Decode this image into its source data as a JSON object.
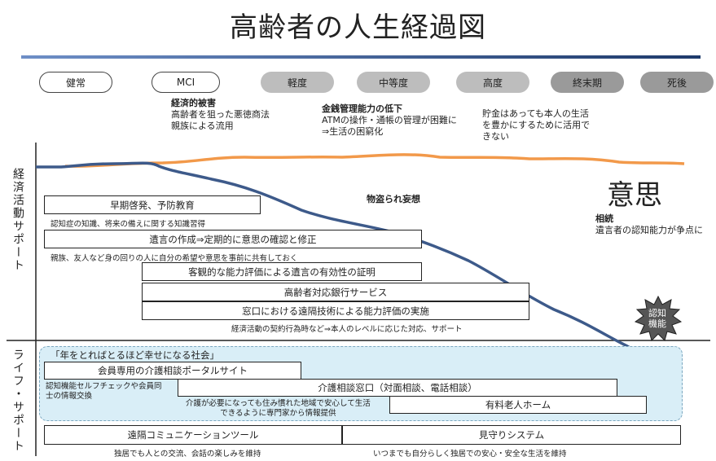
{
  "title": "高齢者の人生経過図",
  "stages": [
    {
      "label": "健常",
      "style": "white"
    },
    {
      "label": "MCI",
      "style": "white"
    },
    {
      "label": "軽度",
      "style": "grey1"
    },
    {
      "label": "中等度",
      "style": "grey1"
    },
    {
      "label": "高度",
      "style": "grey1"
    },
    {
      "label": "終末期",
      "style": "grey2"
    },
    {
      "label": "死後",
      "style": "grey2"
    }
  ],
  "notes": {
    "n1_title": "経済的被害",
    "n1_l1": "高齢者を狙った悪徳商法",
    "n1_l2": "親族による流用",
    "n2_title": "金銭管理能力の低下",
    "n2_l1": "ATMの操作・通帳の管理が困難に",
    "n2_l2": "⇒生活の困窮化",
    "n3_l1": "貯金はあっても本人の生活",
    "n3_l2": "を豊かにするために活用で",
    "n3_l3": "きない",
    "monotori": "物盗られ妄想",
    "ishi": "意思",
    "souzoku_title": "相続",
    "souzoku_l1": "遺言者の認知能力が争点に",
    "ninchi_l1": "認知",
    "ninchi_l2": "機能"
  },
  "axis": {
    "economic": "経済活動サポート",
    "life": "ライフ・サポート"
  },
  "economic_boxes": {
    "b1": "早期啓発、予防教育",
    "b1_sub": "認知症の知識、将来の備えに関する知識習得",
    "b2": "遺言の作成⇒定期的に意思の確認と修正",
    "b2_sub": "親族、友人など身の回りの人に自分の希望や意思を事前に共有しておく",
    "b3": "客観的な能力評価による遺言の有効性の証明",
    "b4": "高齢者対応銀行サービス",
    "b5": "窓口における遠隔技術による能力評価の実施",
    "b5_sub": "経済活動の契約行為時など⇒本人のレベルに応じた対応、サポート"
  },
  "life_boxes": {
    "slogan": "「年をとればとるほど幸せになる社会」",
    "l1": "会員専用の介護相談ポータルサイト",
    "l1_sub1": "認知機能セルフチェックや会員同",
    "l1_sub2": "士の情報交換",
    "l2": "介護相談窓口（対面相談、電話相談）",
    "l2_sub1": "介護が必要になっても住み慣れた地域で安心して生活",
    "l2_sub2": "できるように専門家から情報提供",
    "l3": "有料老人ホーム",
    "l4": "遠隔コミュニケーションツール",
    "l4_sub": "独居でも人との交流、会話の楽しみを維持",
    "l5": "見守りシステム",
    "l5_sub": "いつまでも自分らしく独居での安心・安全な生活を維持"
  },
  "colors": {
    "cognition_line": "#3d5a8a",
    "will_line": "#f2994a",
    "life_bg": "#d9eef7"
  }
}
